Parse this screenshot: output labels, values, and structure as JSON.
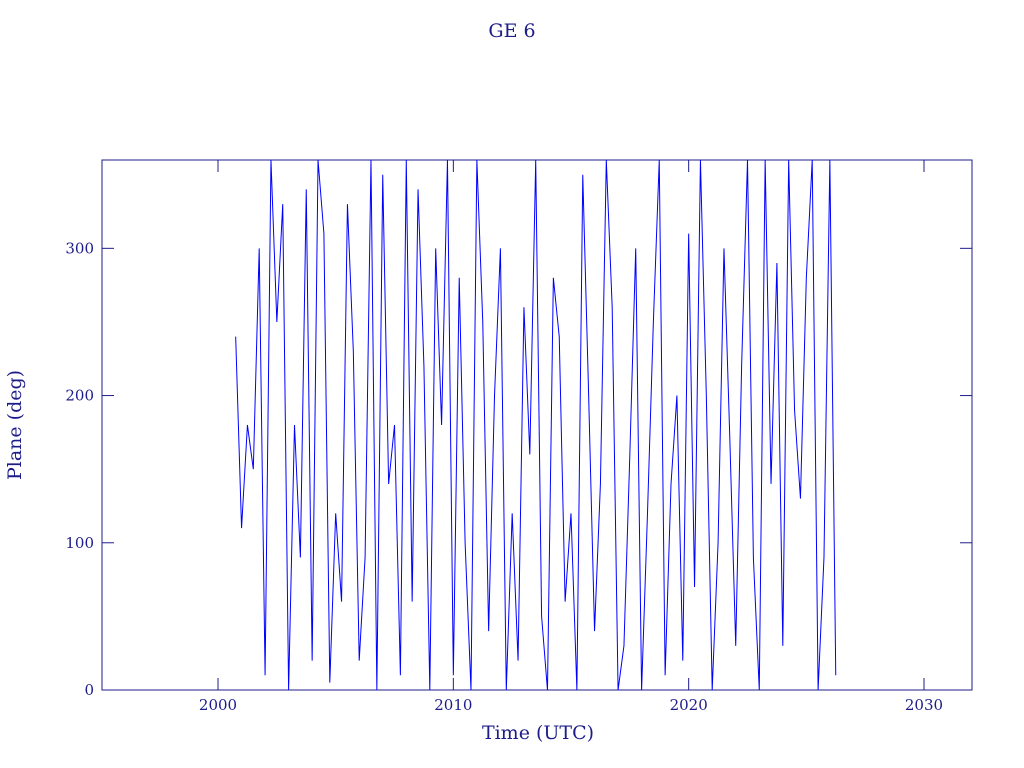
{
  "chart_data": {
    "type": "line",
    "title": "GE 6",
    "x_label": "Time (UTC)",
    "y_label": "Plane (deg)",
    "x": [
      2000.75,
      2001.0,
      2001.25,
      2001.5,
      2001.75,
      2002.0,
      2002.25,
      2002.5,
      2002.75,
      2003.0,
      2003.25,
      2003.5,
      2003.75,
      2004.0,
      2004.25,
      2004.5,
      2004.75,
      2005.0,
      2005.25,
      2005.5,
      2005.75,
      2006.0,
      2006.25,
      2006.5,
      2006.75,
      2007.0,
      2007.25,
      2007.5,
      2007.75,
      2008.0,
      2008.25,
      2008.5,
      2008.75,
      2009.0,
      2009.25,
      2009.5,
      2009.75,
      2010.0,
      2010.25,
      2010.5,
      2010.75,
      2011.0,
      2011.25,
      2011.5,
      2011.75,
      2012.0,
      2012.25,
      2012.5,
      2012.75,
      2013.0,
      2013.25,
      2013.5,
      2013.75,
      2014.0,
      2014.25,
      2014.5,
      2014.75,
      2015.0,
      2015.25,
      2015.5,
      2015.75,
      2016.0,
      2016.25,
      2016.5,
      2016.75,
      2017.0,
      2017.25,
      2017.5,
      2017.75,
      2018.0,
      2018.25,
      2018.5,
      2018.75,
      2019.0,
      2019.25,
      2019.5,
      2019.75,
      2020.0,
      2020.25,
      2020.5,
      2020.75,
      2021.0,
      2021.25,
      2021.5,
      2021.75,
      2022.0,
      2022.25,
      2022.5,
      2022.75,
      2023.0,
      2023.25,
      2023.5,
      2023.75,
      2024.0,
      2024.25,
      2024.5,
      2024.75,
      2025.0,
      2025.25,
      2025.5,
      2025.75,
      2026.0,
      2026.25
    ],
    "values": [
      240,
      110,
      180,
      150,
      300,
      10,
      360,
      250,
      330,
      0,
      180,
      90,
      340,
      20,
      360,
      310,
      5,
      120,
      60,
      330,
      230,
      20,
      90,
      360,
      0,
      350,
      140,
      180,
      10,
      360,
      60,
      340,
      220,
      0,
      300,
      180,
      360,
      10,
      280,
      100,
      0,
      360,
      250,
      40,
      200,
      300,
      0,
      120,
      20,
      260,
      160,
      360,
      50,
      0,
      280,
      240,
      60,
      120,
      0,
      350,
      200,
      40,
      140,
      360,
      260,
      0,
      30,
      160,
      300,
      0,
      120,
      250,
      360,
      10,
      140,
      200,
      20,
      310,
      70,
      360,
      200,
      0,
      100,
      300,
      170,
      30,
      220,
      360,
      90,
      0,
      360,
      140,
      290,
      30,
      360,
      190,
      130,
      280,
      360,
      0,
      90,
      360,
      10
    ],
    "color": "#0000ff",
    "xlim": [
      1995.07,
      2032.04
    ],
    "xticks": [
      2000,
      2010,
      2020,
      2030
    ],
    "ylim": [
      0,
      360
    ],
    "yticks": [
      0,
      100,
      200,
      300
    ]
  }
}
